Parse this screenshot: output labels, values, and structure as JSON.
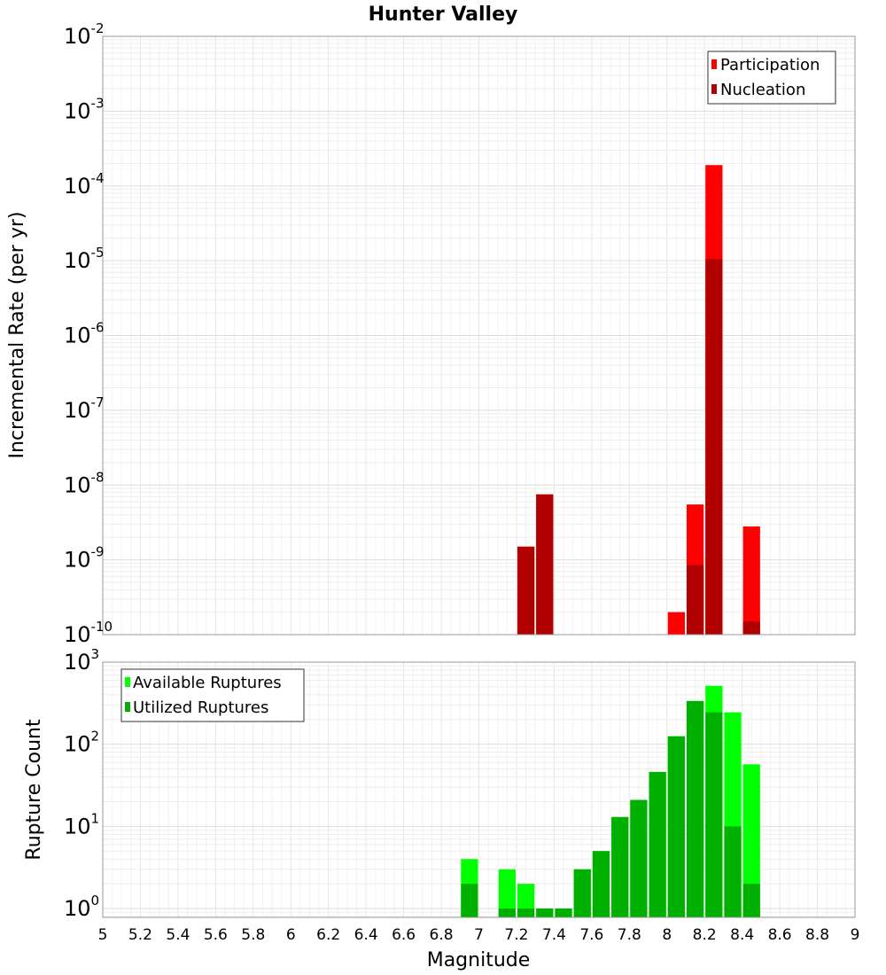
{
  "chart_data": [
    {
      "type": "bar",
      "title": "Hunter Valley",
      "xlabel": "",
      "ylabel": "Incremental Rate (per yr)",
      "yscale": "log",
      "ylim": [
        1e-10,
        0.01
      ],
      "xlim": [
        5,
        9
      ],
      "bin_width": 0.1,
      "legend_position": "top-right",
      "series": [
        {
          "name": "Participation",
          "color": "#ff0000",
          "points": [
            {
              "x": 7.25,
              "y": 1.5e-09
            },
            {
              "x": 7.35,
              "y": 7.5e-09
            },
            {
              "x": 8.05,
              "y": 2e-10
            },
            {
              "x": 8.15,
              "y": 5.5e-09
            },
            {
              "x": 8.25,
              "y": 0.00019
            },
            {
              "x": 8.45,
              "y": 2.8e-09
            }
          ]
        },
        {
          "name": "Nucleation",
          "color": "#b00000",
          "points": [
            {
              "x": 7.25,
              "y": 1.5e-09
            },
            {
              "x": 7.35,
              "y": 7.5e-09
            },
            {
              "x": 8.15,
              "y": 8.5e-10
            },
            {
              "x": 8.25,
              "y": 1.05e-05
            },
            {
              "x": 8.45,
              "y": 1.5e-10
            }
          ]
        }
      ],
      "y_ticks": [
        {
          "base": "10",
          "exp": "-10",
          "value": 1e-10
        },
        {
          "base": "10",
          "exp": "-9",
          "value": 1e-09
        },
        {
          "base": "10",
          "exp": "-8",
          "value": 1e-08
        },
        {
          "base": "10",
          "exp": "-7",
          "value": 1e-07
        },
        {
          "base": "10",
          "exp": "-6",
          "value": 1e-06
        },
        {
          "base": "10",
          "exp": "-5",
          "value": 1e-05
        },
        {
          "base": "10",
          "exp": "-4",
          "value": 0.0001
        },
        {
          "base": "10",
          "exp": "-3",
          "value": 0.001
        },
        {
          "base": "10",
          "exp": "-2",
          "value": 0.01
        }
      ]
    },
    {
      "type": "bar",
      "title": "",
      "xlabel": "Magnitude",
      "ylabel": "Rupture Count",
      "yscale": "log",
      "ylim": [
        0.78,
        1000
      ],
      "xlim": [
        5,
        9
      ],
      "bin_width": 0.1,
      "legend_position": "top-left",
      "series": [
        {
          "name": "Available Ruptures",
          "color": "#00ff00",
          "points": [
            {
              "x": 6.95,
              "y": 4
            },
            {
              "x": 7.15,
              "y": 3
            },
            {
              "x": 7.25,
              "y": 2
            },
            {
              "x": 7.35,
              "y": 1
            },
            {
              "x": 7.45,
              "y": 1
            },
            {
              "x": 7.55,
              "y": 3
            },
            {
              "x": 7.65,
              "y": 5
            },
            {
              "x": 7.75,
              "y": 13
            },
            {
              "x": 7.85,
              "y": 21
            },
            {
              "x": 7.95,
              "y": 46
            },
            {
              "x": 8.05,
              "y": 125
            },
            {
              "x": 8.15,
              "y": 336
            },
            {
              "x": 8.25,
              "y": 515
            },
            {
              "x": 8.35,
              "y": 245
            },
            {
              "x": 8.45,
              "y": 57
            }
          ]
        },
        {
          "name": "Utilized Ruptures",
          "color": "#00b000",
          "points": [
            {
              "x": 6.95,
              "y": 2
            },
            {
              "x": 7.15,
              "y": 1
            },
            {
              "x": 7.25,
              "y": 1
            },
            {
              "x": 7.35,
              "y": 1
            },
            {
              "x": 7.45,
              "y": 1
            },
            {
              "x": 7.55,
              "y": 3
            },
            {
              "x": 7.65,
              "y": 5
            },
            {
              "x": 7.75,
              "y": 13
            },
            {
              "x": 7.85,
              "y": 21
            },
            {
              "x": 7.95,
              "y": 46
            },
            {
              "x": 8.05,
              "y": 125
            },
            {
              "x": 8.15,
              "y": 336
            },
            {
              "x": 8.25,
              "y": 245
            },
            {
              "x": 8.35,
              "y": 10
            },
            {
              "x": 8.45,
              "y": 2
            }
          ]
        }
      ],
      "y_ticks": [
        {
          "base": "10",
          "exp": "0",
          "value": 1
        },
        {
          "base": "10",
          "exp": "1",
          "value": 10
        },
        {
          "base": "10",
          "exp": "2",
          "value": 100
        },
        {
          "base": "10",
          "exp": "3",
          "value": 1000
        }
      ],
      "x_ticks": [
        "5",
        "5.2",
        "5.4",
        "5.6",
        "5.8",
        "6",
        "6.2",
        "6.4",
        "6.6",
        "6.8",
        "7",
        "7.2",
        "7.4",
        "7.6",
        "7.8",
        "8",
        "8.2",
        "8.4",
        "8.6",
        "8.8",
        "9"
      ]
    }
  ]
}
